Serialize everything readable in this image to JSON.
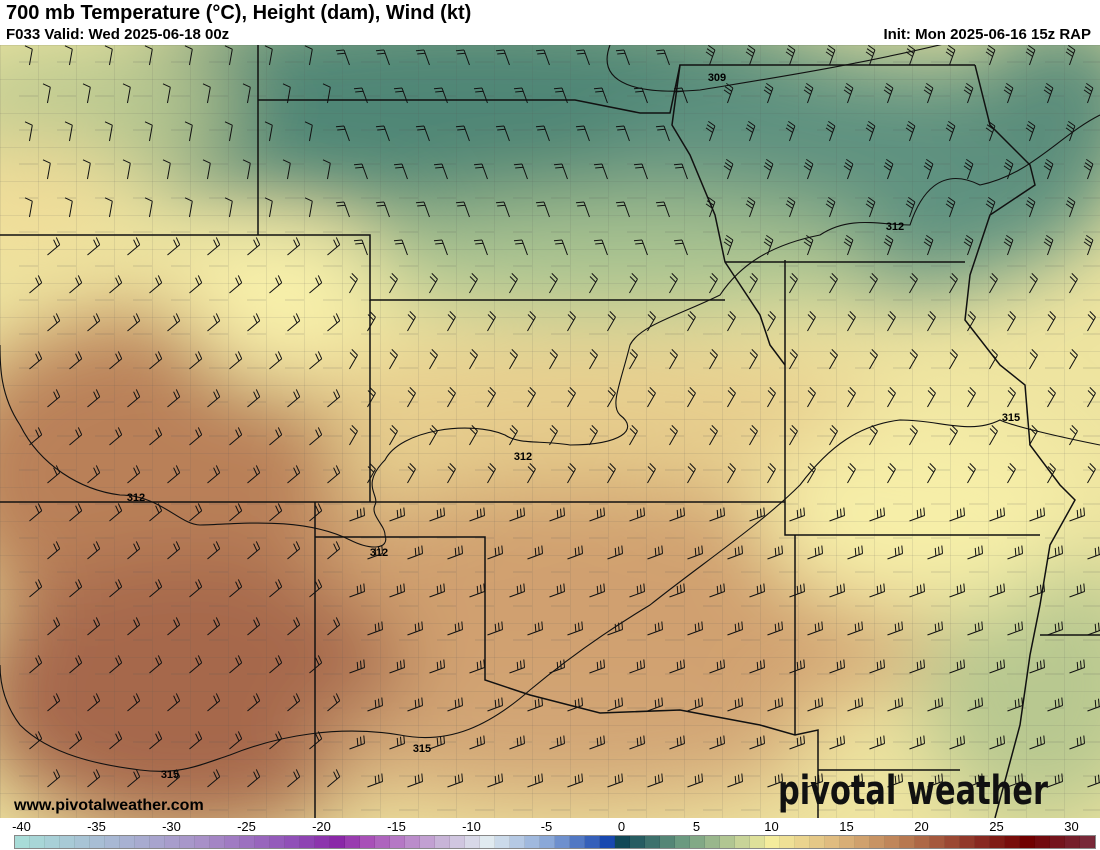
{
  "header": {
    "title": "700 mb Temperature (°C), Height (dam), Wind (kt)",
    "valid": "F033 Valid: Wed 2025-06-18 00z",
    "init": "Init: Mon 2025-06-16 15z RAP"
  },
  "footer": {
    "website": "www.pivotalweather.com",
    "logo": "pivotal weather"
  },
  "contour_labels": [
    "309",
    "312",
    "312",
    "312",
    "312",
    "315",
    "315",
    "315"
  ],
  "colorbar": {
    "min": -40,
    "max": 31,
    "tick_labels": [
      "-40",
      "-35",
      "-30",
      "-25",
      "-20",
      "-15",
      "-10",
      "-5",
      "0",
      "5",
      "10",
      "15",
      "20",
      "25",
      "30"
    ],
    "anchors": [
      {
        "t": -40,
        "color": "#a8dcd8"
      },
      {
        "t": -34,
        "color": "#a8b8d4"
      },
      {
        "t": -28,
        "color": "#a890c8"
      },
      {
        "t": -22,
        "color": "#9050b8"
      },
      {
        "t": -19,
        "color": "#8a28a8"
      },
      {
        "t": -17,
        "color": "#a850b8"
      },
      {
        "t": -12,
        "color": "#c8b4d8"
      },
      {
        "t": -9,
        "color": "#e0eaf0"
      },
      {
        "t": -5,
        "color": "#8aa8d8"
      },
      {
        "t": -1,
        "color": "#1848b0"
      },
      {
        "t": 0,
        "color": "#104858"
      },
      {
        "t": 4,
        "color": "#6a9a80"
      },
      {
        "t": 8,
        "color": "#c8d498"
      },
      {
        "t": 10,
        "color": "#f4ec9c"
      },
      {
        "t": 14,
        "color": "#e0bc80"
      },
      {
        "t": 19,
        "color": "#b87850"
      },
      {
        "t": 24,
        "color": "#882820"
      },
      {
        "t": 27,
        "color": "#700000"
      },
      {
        "t": 31,
        "color": "#782838"
      }
    ]
  },
  "colors": {
    "cold_teal": "#4a8274",
    "green": "#9ab888",
    "pale_yellow": "#f3eaa2",
    "tan": "#dcb87e",
    "brown": "#b47a56",
    "dark_brown": "#a2644a"
  }
}
